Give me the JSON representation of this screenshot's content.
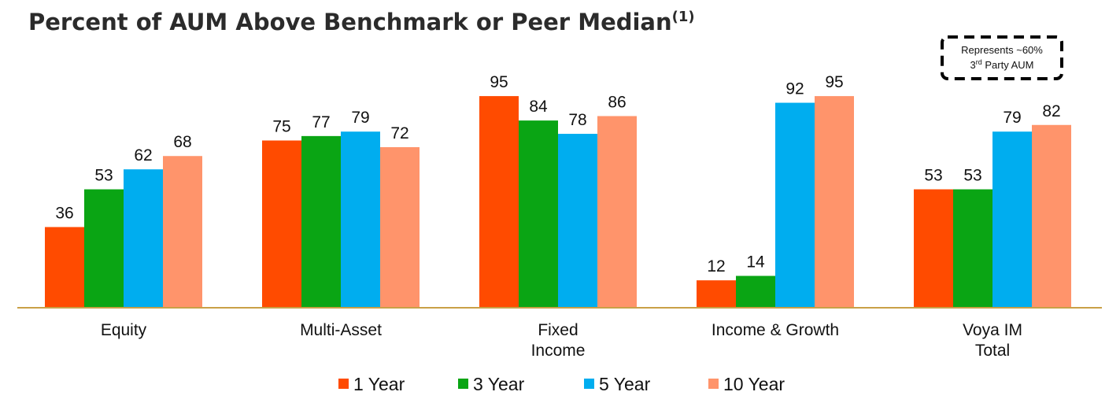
{
  "title": {
    "main": "Percent of AUM Above Benchmark or Peer Median",
    "footnote_marker": "(1)"
  },
  "note": {
    "line1": "Represents ~60%",
    "line2_prefix": "3",
    "line2_sup": "rd",
    "line2_suffix": " Party AUM"
  },
  "colors": {
    "1 Year": "#ff4b00",
    "3 Year": "#0aa514",
    "5 Year": "#00adef",
    "10 Year": "#ff946b",
    "axis": "#c9a046",
    "title": "#2b2b2b"
  },
  "chart_data": {
    "type": "bar",
    "title": "Percent of AUM Above Benchmark or Peer Median(1)",
    "xlabel": "",
    "ylabel": "",
    "ylim": [
      0,
      100
    ],
    "grid": false,
    "legend_position": "bottom",
    "categories": [
      [
        "Equity"
      ],
      [
        "Multi-Asset"
      ],
      [
        "Fixed",
        "Income"
      ],
      [
        "Income & Growth"
      ],
      [
        "Voya IM",
        "Total"
      ]
    ],
    "series": [
      {
        "name": "1 Year",
        "values": [
          36,
          75,
          95,
          12,
          53
        ]
      },
      {
        "name": "3 Year",
        "values": [
          53,
          77,
          84,
          14,
          53
        ]
      },
      {
        "name": "5 Year",
        "values": [
          62,
          79,
          78,
          92,
          79
        ]
      },
      {
        "name": "10 Year",
        "values": [
          68,
          72,
          86,
          95,
          82
        ]
      }
    ]
  }
}
